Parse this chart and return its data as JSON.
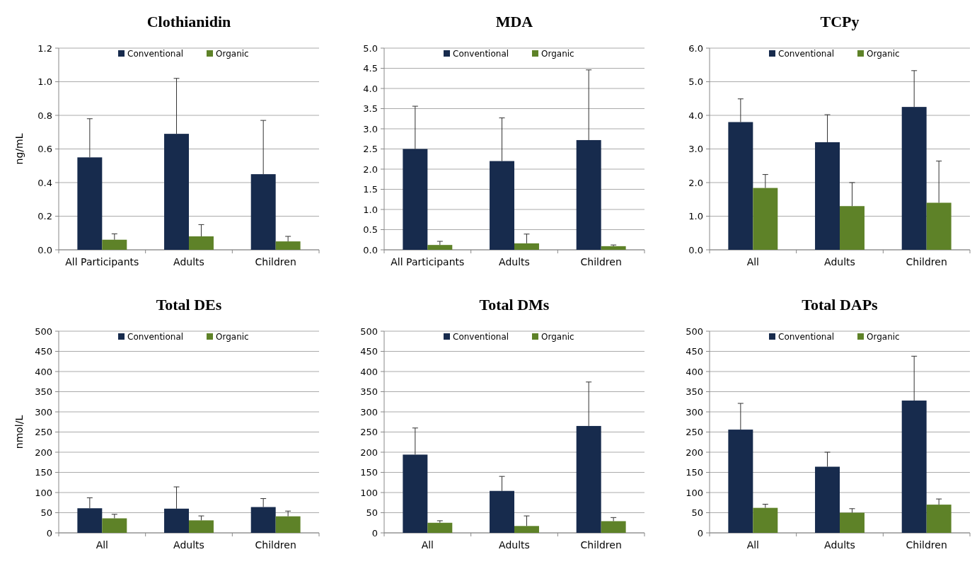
{
  "chart_data": [
    {
      "type": "bar",
      "title": "Clothianidin",
      "ylabel": "ng/mL",
      "categories": [
        "All Participants",
        "Adults",
        "Children"
      ],
      "ylim": [
        0,
        1.2
      ],
      "yticks": [
        {
          "value": 0,
          "label": "0.0"
        },
        0.2,
        0.4,
        0.6,
        0.8,
        {
          "value": 1,
          "label": "1.0"
        },
        1.2
      ],
      "grid": "y",
      "legend": "top",
      "series": [
        {
          "name": "Conventional",
          "color": "#172b4d",
          "values": [
            0.55,
            0.69,
            0.45
          ],
          "errors": [
            [
              0.55,
              0.78
            ],
            [
              0.69,
              1.02
            ],
            [
              0.45,
              0.77
            ]
          ]
        },
        {
          "name": "Organic",
          "color": "#5e8228",
          "values": [
            0.06,
            0.08,
            0.05
          ],
          "errors": [
            [
              0.06,
              0.095
            ],
            [
              0.08,
              0.15
            ],
            [
              0.05,
              0.08
            ]
          ]
        }
      ]
    },
    {
      "type": "bar",
      "title": "MDA",
      "categories": [
        "All Participants",
        "Adults",
        "Children"
      ],
      "ylim": [
        0,
        5
      ],
      "yticks": [
        {
          "value": 0,
          "label": "0.0"
        },
        0.5,
        {
          "value": 1,
          "label": "1.0"
        },
        1.5,
        {
          "value": 2,
          "label": "2.0"
        },
        2.5,
        {
          "value": 3,
          "label": "3.0"
        },
        3.5,
        {
          "value": 4,
          "label": "4.0"
        },
        4.5,
        {
          "value": 5,
          "label": "5.0"
        }
      ],
      "grid": "y",
      "legend": "top",
      "series": [
        {
          "name": "Conventional",
          "color": "#172b4d",
          "values": [
            2.5,
            2.2,
            2.72
          ],
          "errors": [
            [
              2.5,
              3.56
            ],
            [
              2.2,
              3.27
            ],
            [
              2.72,
              4.46
            ]
          ]
        },
        {
          "name": "Organic",
          "color": "#5e8228",
          "values": [
            0.12,
            0.16,
            0.09
          ],
          "errors": [
            [
              0.12,
              0.21
            ],
            [
              0.16,
              0.39
            ],
            [
              0.09,
              0.12
            ]
          ]
        }
      ]
    },
    {
      "type": "bar",
      "title": "TCPy",
      "categories": [
        "All",
        "Adults",
        "Children"
      ],
      "ylim": [
        0,
        6
      ],
      "yticks": [
        {
          "value": 0,
          "label": "0.0"
        },
        {
          "value": 1,
          "label": "1.0"
        },
        {
          "value": 2,
          "label": "2.0"
        },
        {
          "value": 3,
          "label": "3.0"
        },
        {
          "value": 4,
          "label": "4.0"
        },
        {
          "value": 5,
          "label": "5.0"
        },
        {
          "value": 6,
          "label": "6.0"
        }
      ],
      "grid": "y",
      "legend": "top",
      "series": [
        {
          "name": "Conventional",
          "color": "#172b4d",
          "values": [
            3.8,
            3.2,
            4.25
          ],
          "errors": [
            [
              3.8,
              4.49
            ],
            [
              3.2,
              4.02
            ],
            [
              4.25,
              5.33
            ]
          ]
        },
        {
          "name": "Organic",
          "color": "#5e8228",
          "values": [
            1.84,
            1.3,
            1.4
          ],
          "errors": [
            [
              1.84,
              2.24
            ],
            [
              1.3,
              2.0
            ],
            [
              1.4,
              2.64
            ]
          ]
        }
      ]
    },
    {
      "type": "bar",
      "title": "Total DEs",
      "ylabel": "nmol/L",
      "categories": [
        "All",
        "Adults",
        "Children"
      ],
      "ylim": [
        0,
        500
      ],
      "yticks": [
        0,
        50,
        100,
        150,
        200,
        250,
        300,
        350,
        400,
        450,
        500
      ],
      "grid": "y",
      "legend": "top",
      "series": [
        {
          "name": "Conventional",
          "color": "#172b4d",
          "values": [
            61,
            60,
            64
          ],
          "errors": [
            [
              61,
              87
            ],
            [
              60,
              114
            ],
            [
              64,
              85
            ]
          ]
        },
        {
          "name": "Organic",
          "color": "#5e8228",
          "values": [
            36,
            31,
            41
          ],
          "errors": [
            [
              36,
              46
            ],
            [
              31,
              42
            ],
            [
              41,
              54
            ]
          ]
        }
      ]
    },
    {
      "type": "bar",
      "title": "Total DMs",
      "categories": [
        "All",
        "Adults",
        "Children"
      ],
      "ylim": [
        0,
        500
      ],
      "yticks": [
        0,
        50,
        100,
        150,
        200,
        250,
        300,
        350,
        400,
        450,
        500
      ],
      "grid": "y",
      "legend": "top",
      "series": [
        {
          "name": "Conventional",
          "color": "#172b4d",
          "values": [
            194,
            104,
            265
          ],
          "errors": [
            [
              194,
              260
            ],
            [
              104,
              140
            ],
            [
              265,
              374
            ]
          ]
        },
        {
          "name": "Organic",
          "color": "#5e8228",
          "values": [
            25,
            17,
            29
          ],
          "errors": [
            [
              25,
              30
            ],
            [
              17,
              42
            ],
            [
              29,
              38
            ]
          ]
        }
      ]
    },
    {
      "type": "bar",
      "title": "Total DAPs",
      "categories": [
        "All",
        "Adults",
        "Children"
      ],
      "ylim": [
        0,
        500
      ],
      "yticks": [
        0,
        50,
        100,
        150,
        200,
        250,
        300,
        350,
        400,
        450,
        500
      ],
      "grid": "y",
      "legend": "top",
      "series": [
        {
          "name": "Conventional",
          "color": "#172b4d",
          "values": [
            256,
            164,
            328
          ],
          "errors": [
            [
              256,
              321
            ],
            [
              164,
              200
            ],
            [
              328,
              438
            ]
          ]
        },
        {
          "name": "Organic",
          "color": "#5e8228",
          "values": [
            62,
            50,
            70
          ],
          "errors": [
            [
              62,
              71
            ],
            [
              50,
              60
            ],
            [
              70,
              84
            ]
          ]
        }
      ]
    }
  ]
}
